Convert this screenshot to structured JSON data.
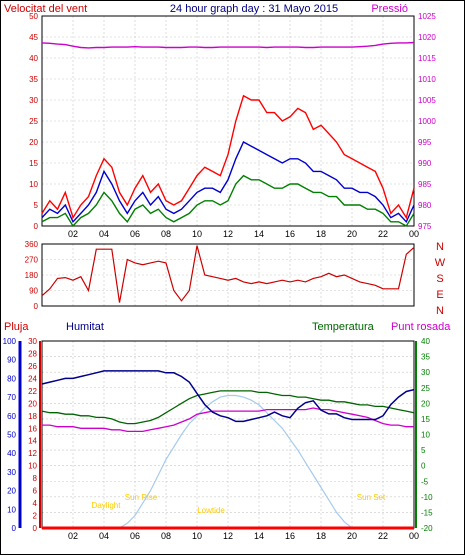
{
  "header": {
    "left": "Velocitat del vent",
    "center": "24 hour graph day : 31 Mayo 2015",
    "right": "Pressió"
  },
  "panel_bottom_labels": {
    "rain": "Pluja",
    "humidity": "Humitat",
    "temperature": "Temperatura",
    "dewpoint": "Punt rosada"
  },
  "colors": {
    "wind_gust": "#ff0000",
    "wind_avg": "#0000cc",
    "wind_low": "#008000",
    "pressure": "#cc00cc",
    "direction": "#cc0000",
    "humidity": "#00008b",
    "temperature": "#006400",
    "dewpoint": "#cc00cc",
    "sun": "#a6cbee",
    "rain": "#ff0000",
    "sun_labels": "#ffcc00"
  },
  "chart_data": [
    {
      "type": "line",
      "name": "wind",
      "xticks": [
        "02",
        "04",
        "06",
        "08",
        "10",
        "12",
        "14",
        "16",
        "18",
        "20",
        "22",
        "00"
      ],
      "x_hours": [
        0,
        0.5,
        1,
        1.5,
        2,
        2.5,
        3,
        3.5,
        4,
        4.5,
        5,
        5.5,
        6,
        6.5,
        7,
        7.5,
        8,
        8.5,
        9,
        9.5,
        10,
        10.5,
        11,
        11.5,
        12,
        12.5,
        13,
        13.5,
        14,
        14.5,
        15,
        15.5,
        16,
        16.5,
        17,
        17.5,
        18,
        18.5,
        19,
        19.5,
        20,
        20.5,
        21,
        21.5,
        22,
        22.5,
        23,
        23.5,
        24
      ],
      "left_axis": {
        "ticks": [
          0,
          5,
          10,
          15,
          20,
          25,
          30,
          35,
          40,
          45,
          50
        ],
        "ylim": [
          0,
          50
        ]
      },
      "right_axis": {
        "ticks": [
          975,
          980,
          985,
          990,
          995,
          1000,
          1005,
          1010,
          1015,
          1020,
          1025
        ],
        "ylim": [
          975,
          1025
        ]
      },
      "series": [
        {
          "key": "gust",
          "values": [
            3,
            6,
            4,
            8,
            2,
            5,
            7,
            12,
            16,
            14,
            8,
            5,
            9,
            12,
            8,
            10,
            6,
            5,
            6,
            9,
            12,
            14,
            13,
            12,
            17,
            25,
            31,
            30,
            30,
            27,
            27,
            25,
            26,
            28,
            27,
            23,
            24,
            22,
            20,
            17,
            16,
            15,
            14,
            13,
            9,
            3,
            5,
            2,
            9
          ]
        },
        {
          "key": "avg",
          "values": [
            2,
            4,
            3,
            5,
            1,
            3,
            5,
            8,
            13,
            10,
            6,
            3,
            6,
            8,
            5,
            7,
            4,
            3,
            4,
            6,
            8,
            9,
            9,
            8,
            11,
            16,
            20,
            19,
            18,
            17,
            16,
            15,
            16,
            16,
            15,
            13,
            13,
            12,
            11,
            9,
            9,
            8,
            8,
            7,
            5,
            2,
            3,
            1,
            5
          ]
        },
        {
          "key": "low",
          "values": [
            1,
            2,
            2,
            3,
            0,
            2,
            3,
            5,
            8,
            6,
            3,
            1,
            4,
            5,
            3,
            4,
            2,
            1,
            2,
            3,
            5,
            6,
            6,
            5,
            6,
            10,
            12,
            11,
            11,
            10,
            9,
            9,
            10,
            10,
            9,
            8,
            8,
            7,
            7,
            5,
            5,
            5,
            4,
            4,
            3,
            1,
            1,
            0,
            3
          ]
        },
        {
          "key": "pressure",
          "values": [
            1018.6,
            1018.5,
            1018.3,
            1018.2,
            1017.8,
            1017.5,
            1017.4,
            1017.5,
            1017.5,
            1017.6,
            1017.6,
            1017.6,
            1017.7,
            1017.6,
            1017.6,
            1017.6,
            1017.5,
            1017.5,
            1017.5,
            1017.6,
            1017.6,
            1017.5,
            1017.5,
            1017.6,
            1017.6,
            1017.6,
            1017.6,
            1017.6,
            1017.6,
            1017.5,
            1017.6,
            1017.6,
            1017.6,
            1017.6,
            1017.5,
            1017.5,
            1017.6,
            1017.6,
            1017.6,
            1017.6,
            1017.6,
            1017.7,
            1017.8,
            1018.0,
            1018.3,
            1018.5,
            1018.6,
            1018.6,
            1018.7
          ]
        }
      ]
    },
    {
      "type": "line",
      "name": "wind direction",
      "xticks": [
        "02",
        "04",
        "06",
        "08",
        "10",
        "12",
        "14",
        "16",
        "18",
        "20",
        "22",
        "00"
      ],
      "x_hours": [
        0,
        0.5,
        1,
        1.5,
        2,
        2.5,
        3,
        3.5,
        4,
        4.5,
        5,
        5.5,
        6,
        6.5,
        7,
        7.5,
        8,
        8.5,
        9,
        9.5,
        10,
        10.5,
        11,
        11.5,
        12,
        12.5,
        13,
        13.5,
        14,
        14.5,
        15,
        15.5,
        16,
        16.5,
        17,
        17.5,
        18,
        18.5,
        19,
        19.5,
        20,
        20.5,
        21,
        21.5,
        22,
        22.5,
        23,
        23.5,
        24
      ],
      "left_axis": {
        "ticks": [
          0,
          90,
          180,
          270,
          360
        ],
        "ylim": [
          0,
          360
        ]
      },
      "compass": [
        "N",
        "W",
        "S",
        "E",
        "N"
      ],
      "values": [
        60,
        100,
        160,
        165,
        150,
        170,
        90,
        330,
        330,
        330,
        20,
        270,
        250,
        240,
        250,
        260,
        250,
        90,
        30,
        90,
        350,
        180,
        170,
        160,
        150,
        160,
        140,
        130,
        140,
        130,
        140,
        150,
        140,
        150,
        140,
        160,
        170,
        190,
        170,
        180,
        160,
        140,
        130,
        120,
        100,
        100,
        100,
        300,
        340
      ]
    },
    {
      "type": "line",
      "name": "temperature humidity",
      "xticks": [
        "02",
        "04",
        "06",
        "08",
        "10",
        "12",
        "14",
        "16",
        "18",
        "20",
        "22",
        "00"
      ],
      "x_hours": [
        0,
        0.5,
        1,
        1.5,
        2,
        2.5,
        3,
        3.5,
        4,
        4.5,
        5,
        5.5,
        6,
        6.5,
        7,
        7.5,
        8,
        8.5,
        9,
        9.5,
        10,
        10.5,
        11,
        11.5,
        12,
        12.5,
        13,
        13.5,
        14,
        14.5,
        15,
        15.5,
        16,
        16.5,
        17,
        17.5,
        18,
        18.5,
        19,
        19.5,
        20,
        20.5,
        21,
        21.5,
        22,
        22.5,
        23,
        23.5,
        24
      ],
      "humidity_axis": {
        "ticks": [
          0,
          10,
          20,
          30,
          40,
          50,
          60,
          70,
          80,
          90,
          100
        ],
        "ylim": [
          0,
          100
        ]
      },
      "rain_axis": {
        "ticks": [
          0,
          2,
          4,
          6,
          8,
          10,
          12,
          14,
          16,
          18,
          20,
          22,
          24,
          26,
          28,
          30
        ],
        "ylim": [
          0,
          30
        ]
      },
      "temp_axis": {
        "ticks": [
          -20,
          -15,
          -10,
          -5,
          0,
          5,
          10,
          15,
          20,
          25,
          30,
          35,
          40
        ],
        "ylim": [
          -20,
          40
        ]
      },
      "series": [
        {
          "key": "humidity",
          "values": [
            77,
            78,
            79,
            80,
            80,
            81,
            82,
            83,
            84,
            84,
            84,
            84,
            84,
            84,
            84,
            84,
            83,
            83,
            81,
            78,
            72,
            66,
            62,
            60,
            59,
            57,
            57,
            58,
            59,
            60,
            62,
            60,
            59,
            64,
            67,
            68,
            63,
            61,
            61,
            59,
            58,
            58,
            58,
            58,
            60,
            66,
            70,
            73,
            74
          ]
        },
        {
          "key": "temperature",
          "values": [
            17.5,
            17.0,
            17.0,
            16.5,
            16.5,
            16.0,
            16.0,
            15.5,
            15.5,
            15.0,
            14.0,
            13.5,
            13.5,
            14.0,
            14.5,
            15.5,
            17.0,
            18.5,
            20.0,
            21.5,
            22.5,
            23.0,
            23.5,
            24.0,
            24.0,
            24.0,
            24.0,
            24.0,
            23.5,
            23.5,
            23.0,
            22.5,
            22.5,
            22.0,
            22.0,
            21.5,
            21.0,
            21.0,
            20.5,
            20.5,
            20.0,
            19.5,
            19.5,
            19.0,
            19.0,
            18.5,
            18.0,
            17.5,
            17.0
          ]
        },
        {
          "key": "dewpoint",
          "values": [
            13.0,
            13.0,
            12.5,
            12.5,
            12.5,
            12.0,
            12.0,
            12.0,
            12.0,
            11.5,
            11.5,
            11.0,
            11.0,
            11.0,
            11.5,
            12.0,
            12.5,
            13.0,
            14.0,
            15.0,
            16.5,
            17.0,
            17.5,
            17.5,
            17.5,
            17.5,
            17.5,
            17.5,
            17.5,
            18.0,
            18.0,
            18.0,
            18.0,
            18.0,
            18.0,
            18.5,
            18.0,
            18.0,
            17.5,
            17.0,
            16.5,
            16.0,
            15.5,
            14.5,
            13.5,
            13.0,
            13.0,
            12.5,
            12.5
          ]
        },
        {
          "key": "sun",
          "values": [
            -20,
            -20,
            -20,
            -20,
            -20,
            -20,
            -20,
            -20,
            -20,
            -20,
            -20,
            -18.5,
            -16,
            -12,
            -8,
            -3,
            2,
            6,
            10,
            13.5,
            16,
            18.5,
            20.5,
            22,
            22.5,
            22.5,
            22,
            21,
            19.5,
            17,
            14.5,
            12,
            8.5,
            5,
            1,
            -3,
            -7,
            -11,
            -15,
            -18,
            -20,
            -20,
            -20,
            -20,
            -20,
            -20,
            -20,
            -20,
            -20
          ]
        },
        {
          "key": "rain",
          "values": [
            0,
            0,
            0,
            0,
            0,
            0,
            0,
            0,
            0,
            0,
            0,
            0,
            0,
            0,
            0,
            0,
            0,
            0,
            0,
            0,
            0,
            0,
            0,
            0,
            0,
            0,
            0,
            0,
            0,
            0,
            0,
            0,
            0,
            0,
            0,
            0,
            0,
            0,
            0,
            0,
            0,
            0,
            0,
            0,
            0,
            0,
            0,
            0,
            0
          ]
        }
      ],
      "annotations": [
        "Daylight",
        "Sun Rise",
        "Lowtide",
        "Sun Set"
      ]
    }
  ]
}
